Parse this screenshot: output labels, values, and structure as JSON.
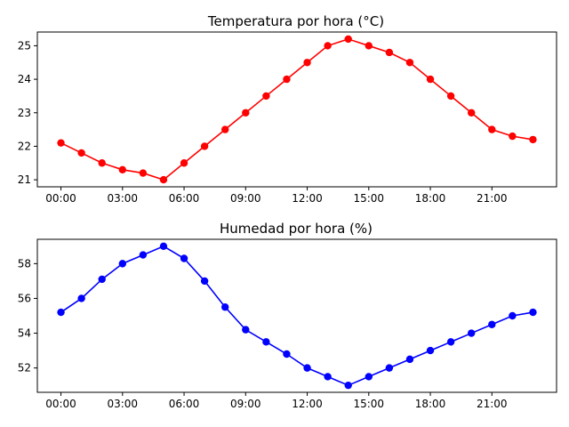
{
  "chart_data": [
    {
      "type": "line",
      "title": "Temperatura por hora (°C)",
      "xlabel": "",
      "ylabel": "",
      "x": [
        0,
        1,
        2,
        3,
        4,
        5,
        6,
        7,
        8,
        9,
        10,
        11,
        12,
        13,
        14,
        15,
        16,
        17,
        18,
        19,
        20,
        21,
        22,
        23
      ],
      "xtick_values": [
        0,
        3,
        6,
        9,
        12,
        15,
        18,
        21
      ],
      "xtick_labels": [
        "00:00",
        "03:00",
        "06:00",
        "09:00",
        "12:00",
        "15:00",
        "18:00",
        "21:00"
      ],
      "ylim": [
        20.79,
        25.41
      ],
      "yticks": [
        21,
        22,
        23,
        24,
        25
      ],
      "grid": false,
      "series": [
        {
          "color": "#ff0000",
          "marker": "circle",
          "values": [
            22.1,
            21.8,
            21.5,
            21.3,
            21.2,
            21.0,
            21.5,
            22.0,
            22.5,
            23.0,
            23.5,
            24.0,
            24.5,
            25.0,
            25.2,
            25.0,
            24.8,
            24.5,
            24.0,
            23.5,
            23.0,
            22.5,
            22.3,
            22.2
          ]
        }
      ]
    },
    {
      "type": "line",
      "title": "Humedad por hora (%)",
      "xlabel": "",
      "ylabel": "",
      "x": [
        0,
        1,
        2,
        3,
        4,
        5,
        6,
        7,
        8,
        9,
        10,
        11,
        12,
        13,
        14,
        15,
        16,
        17,
        18,
        19,
        20,
        21,
        22,
        23
      ],
      "xtick_values": [
        0,
        3,
        6,
        9,
        12,
        15,
        18,
        21
      ],
      "xtick_labels": [
        "00:00",
        "03:00",
        "06:00",
        "09:00",
        "12:00",
        "15:00",
        "18:00",
        "21:00"
      ],
      "ylim": [
        50.6,
        59.4
      ],
      "yticks": [
        52,
        54,
        56,
        58
      ],
      "grid": false,
      "series": [
        {
          "color": "#0000ff",
          "marker": "circle",
          "values": [
            55.2,
            56.0,
            57.1,
            58.0,
            58.5,
            59.0,
            58.3,
            57.0,
            55.5,
            54.2,
            53.5,
            52.8,
            52.0,
            51.5,
            51.0,
            51.5,
            52.0,
            52.5,
            53.0,
            53.5,
            54.0,
            54.5,
            55.0,
            55.2
          ]
        }
      ]
    }
  ]
}
